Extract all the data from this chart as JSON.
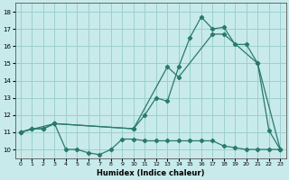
{
  "xlabel": "Humidex (Indice chaleur)",
  "xlim": [
    -0.5,
    23.5
  ],
  "ylim": [
    9.5,
    18.5
  ],
  "xticks": [
    0,
    1,
    2,
    3,
    4,
    5,
    6,
    7,
    8,
    9,
    10,
    11,
    12,
    13,
    14,
    15,
    16,
    17,
    18,
    19,
    20,
    21,
    22,
    23
  ],
  "yticks": [
    10,
    11,
    12,
    13,
    14,
    15,
    16,
    17,
    18
  ],
  "background_color": "#c8eaea",
  "grid_color": "#9dcfcf",
  "line_color": "#2a7a6a",
  "line1_x": [
    0,
    1,
    2,
    3,
    4,
    5,
    6,
    7,
    8,
    9,
    10,
    11,
    12,
    13,
    14,
    15,
    16,
    17,
    18,
    19,
    20,
    21,
    22,
    23
  ],
  "line1_y": [
    11,
    11.2,
    11.2,
    11.5,
    10.0,
    10.0,
    9.8,
    9.7,
    10.0,
    10.6,
    10.6,
    10.5,
    10.5,
    10.5,
    10.5,
    10.5,
    10.5,
    10.5,
    10.2,
    10.1,
    10.0,
    10.0,
    10.0,
    10.0
  ],
  "line2_x": [
    0,
    1,
    2,
    3,
    10,
    11,
    12,
    13,
    14,
    15,
    16,
    17,
    18,
    19,
    20,
    21,
    22,
    23
  ],
  "line2_y": [
    11,
    11.2,
    11.2,
    11.5,
    11.2,
    12.0,
    13.0,
    12.8,
    14.8,
    16.5,
    17.7,
    17.0,
    17.1,
    16.1,
    16.1,
    15.0,
    11.1,
    10.0
  ],
  "line3_x": [
    0,
    3,
    10,
    13,
    14,
    17,
    18,
    21,
    23
  ],
  "line3_y": [
    11,
    11.5,
    11.2,
    14.8,
    14.2,
    16.7,
    16.7,
    15.0,
    10.0
  ]
}
